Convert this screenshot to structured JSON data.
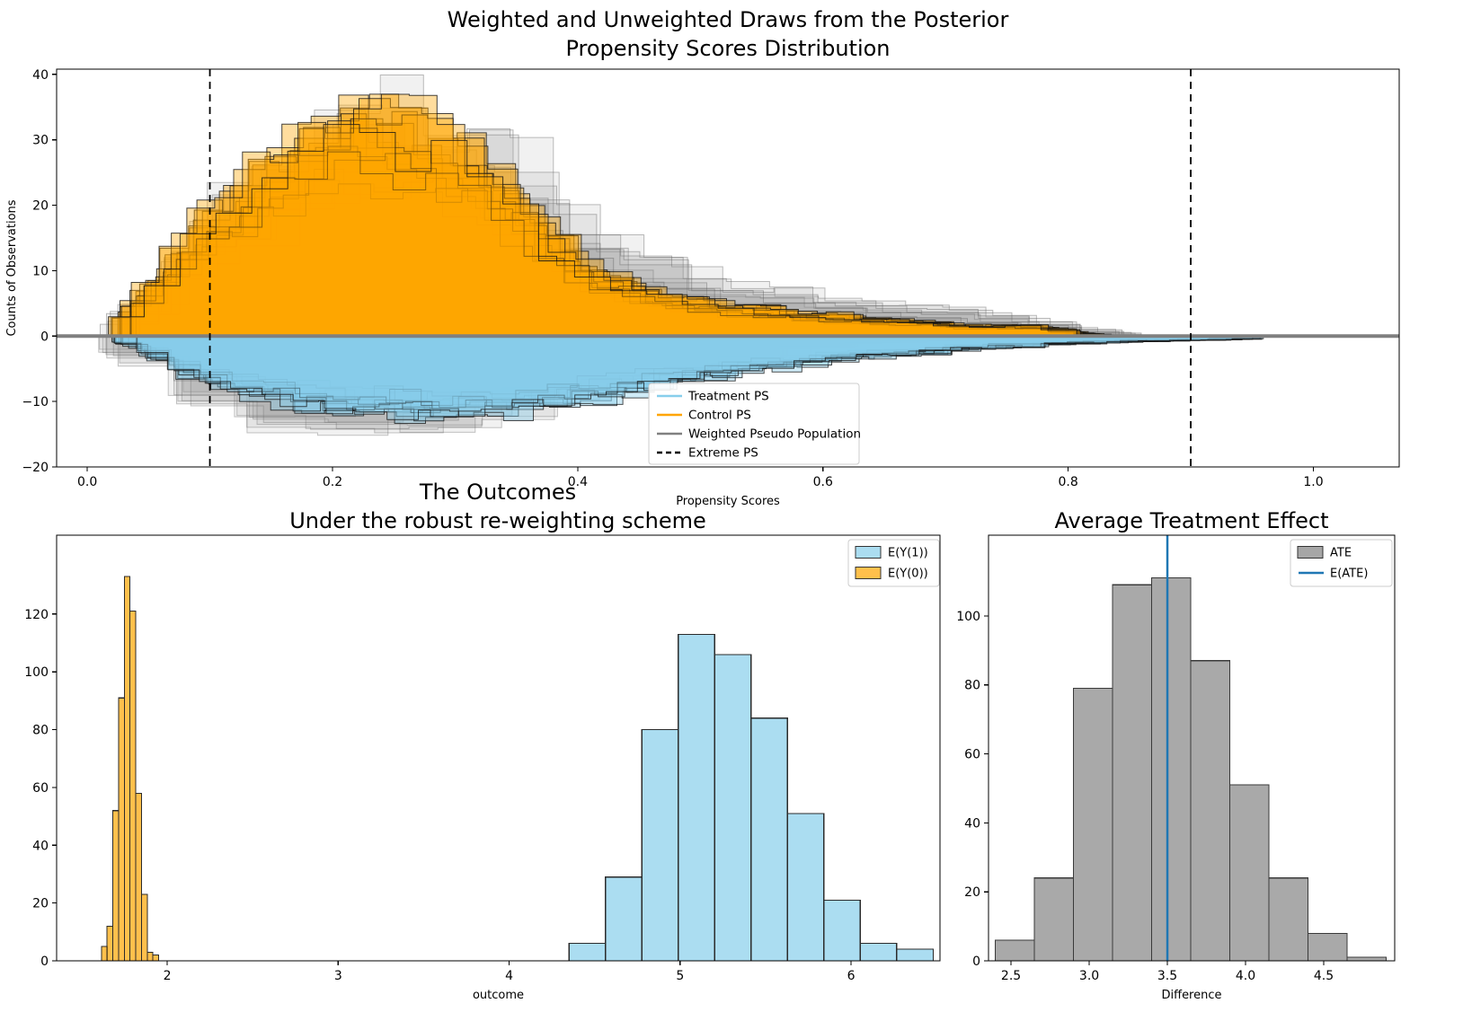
{
  "figure": {
    "background": "#ffffff"
  },
  "chart_data": [
    {
      "id": "propensity",
      "type": "bar",
      "subtype": "mirrored-ensemble-histogram",
      "title_lines": [
        "Weighted and Unweighted Draws from the Posterior",
        "Propensity Scores Distribution"
      ],
      "xlabel": "Propensity Scores",
      "ylabel": "Counts of Observations",
      "xlim": [
        -0.025,
        1.07
      ],
      "ylim": [
        -20,
        40.8
      ],
      "xticks": [
        0.0,
        0.2,
        0.4,
        0.6,
        0.8,
        1.0
      ],
      "yticks": [
        -20,
        -10,
        0,
        10,
        20,
        30,
        40
      ],
      "extreme_ps": [
        0.1,
        0.9
      ],
      "zero_line_color": "#808080",
      "bins": {
        "start": 0.02,
        "width": 0.02
      },
      "series": [
        {
          "name": "Weighted Pseudo Population (control side)",
          "role": "pseudo-top",
          "color": "#969696",
          "fill_alpha": 0.13,
          "edge_color": "#5a5a5a",
          "edge_alpha": 0.4,
          "draws": 9,
          "sign": 1,
          "mean_counts": [
            1.5,
            4,
            8,
            12,
            15,
            17,
            19,
            21,
            23,
            25,
            26,
            26.5,
            26,
            25,
            24,
            22,
            21,
            19,
            16,
            13,
            11,
            10,
            9,
            8,
            7,
            6.5,
            6,
            5.5,
            5,
            4.5,
            4,
            4,
            3.5,
            3.5,
            3,
            3,
            2.5,
            2,
            1.5,
            1,
            0.5,
            0,
            0,
            0,
            0,
            0,
            0
          ]
        },
        {
          "name": "Weighted Pseudo Population (treatment side)",
          "role": "pseudo-bottom",
          "color": "#969696",
          "fill_alpha": 0.13,
          "edge_color": "#5a5a5a",
          "edge_alpha": 0.35,
          "draws": 8,
          "sign": -1,
          "mean_counts": [
            1,
            3,
            5,
            7,
            9,
            10,
            11,
            11.5,
            12,
            12,
            12,
            12,
            12,
            11.5,
            11,
            10.5,
            10,
            9,
            8,
            7,
            6,
            5,
            4.5,
            4,
            3.5,
            3,
            2.5,
            2,
            1.5,
            1,
            1,
            0.8,
            0.6,
            0.5,
            0.4,
            0.3,
            0,
            0,
            0,
            0,
            0,
            0,
            0,
            0,
            0,
            0,
            0
          ]
        },
        {
          "name": "Control PS",
          "role": "control",
          "color": "#FFA500",
          "fill_alpha": 0.38,
          "edge_color": "#141414",
          "edge_alpha": 0.8,
          "draws": 16,
          "sign": 1,
          "mean_counts": [
            3,
            7,
            11,
            15,
            18,
            21,
            24,
            27,
            29,
            31,
            32,
            31,
            30,
            28,
            26,
            23,
            20,
            16,
            13,
            10,
            8,
            7,
            6,
            5,
            5,
            4,
            4,
            3.5,
            3,
            3,
            2.5,
            2.5,
            2,
            2,
            1.5,
            1.5,
            1.5,
            1.5,
            1,
            0.5,
            0,
            0,
            0,
            0,
            0,
            0,
            0
          ]
        },
        {
          "name": "Treatment PS",
          "role": "treatment",
          "color": "#87CEEB",
          "fill_alpha": 0.4,
          "edge_color": "#141414",
          "edge_alpha": 0.75,
          "draws": 16,
          "sign": -1,
          "mean_counts": [
            1,
            2,
            4,
            6,
            7,
            8,
            9,
            9.5,
            10,
            10.5,
            11,
            11,
            11.5,
            11.5,
            11,
            11,
            10.5,
            10,
            9.5,
            9,
            8.5,
            8,
            7,
            6.5,
            6,
            5.5,
            5,
            4.5,
            4,
            3.5,
            3,
            3,
            2.5,
            2.5,
            2,
            2,
            1.5,
            1.5,
            1.2,
            1,
            1,
            0.8,
            0.8,
            0.6,
            0.6,
            0.5,
            0.4
          ]
        }
      ],
      "legend": [
        {
          "label": "Treatment PS",
          "color": "#87CEEB",
          "swatch": "line"
        },
        {
          "label": "Control PS",
          "color": "#FFA500",
          "swatch": "line"
        },
        {
          "label": "Weighted Pseudo Population",
          "color": "#808080",
          "swatch": "line"
        },
        {
          "label": "Extreme PS",
          "color": "#000000",
          "swatch": "dashed-line"
        }
      ]
    },
    {
      "id": "outcomes",
      "type": "bar",
      "subtype": "histogram",
      "title_lines": [
        "The Outcomes",
        "Under the robust re-weighting scheme"
      ],
      "xlabel": "outcome",
      "ylabel": "",
      "xlim": [
        1.353,
        6.52
      ],
      "ylim": [
        0,
        147.3
      ],
      "xticks": [
        2,
        3,
        4,
        5,
        6
      ],
      "yticks": [
        0,
        20,
        40,
        60,
        80,
        100,
        120
      ],
      "series": [
        {
          "name": "E(Y(0))",
          "color": "#FFA500",
          "fill_alpha": 0.7,
          "edge_color": "#2b2b2b",
          "bin_start": 1.615,
          "bin_width": 0.0335,
          "counts": [
            5,
            12,
            52,
            91,
            133,
            121,
            58,
            23,
            3,
            2
          ]
        },
        {
          "name": "E(Y(1))",
          "color": "#87CEEB",
          "fill_alpha": 0.7,
          "edge_color": "#2b2b2b",
          "bin_start": 4.35,
          "bin_width": 0.213,
          "counts": [
            6,
            29,
            80,
            113,
            106,
            84,
            51,
            21,
            6,
            4
          ]
        }
      ],
      "legend": [
        {
          "label": "E(Y(1))",
          "color": "#87CEEB",
          "swatch": "patch"
        },
        {
          "label": "E(Y(0))",
          "color": "#FFA500",
          "swatch": "patch"
        }
      ]
    },
    {
      "id": "ate",
      "type": "bar",
      "subtype": "histogram",
      "title_lines": [
        "Average Treatment Effect"
      ],
      "xlabel": "Difference",
      "ylabel": "",
      "xlim": [
        2.356,
        4.954
      ],
      "ylim": [
        0,
        123.4
      ],
      "xticks": [
        2.5,
        3.0,
        3.5,
        4.0,
        4.5
      ],
      "yticks": [
        0,
        20,
        40,
        60,
        80,
        100
      ],
      "series": [
        {
          "name": "ATE",
          "color": "#808080",
          "fill_alpha": 0.68,
          "edge_color": "#3a3a3a",
          "bin_start": 2.4,
          "bin_width": 0.25,
          "counts": [
            6,
            24,
            79,
            109,
            111,
            87,
            51,
            24,
            8,
            1
          ]
        }
      ],
      "mean_line": {
        "label": "E(ATE)",
        "value": 3.5,
        "color": "#1f77b4"
      },
      "legend": [
        {
          "label": "ATE",
          "color": "#808080",
          "swatch": "patch"
        },
        {
          "label": "E(ATE)",
          "color": "#1f77b4",
          "swatch": "line"
        }
      ]
    }
  ]
}
